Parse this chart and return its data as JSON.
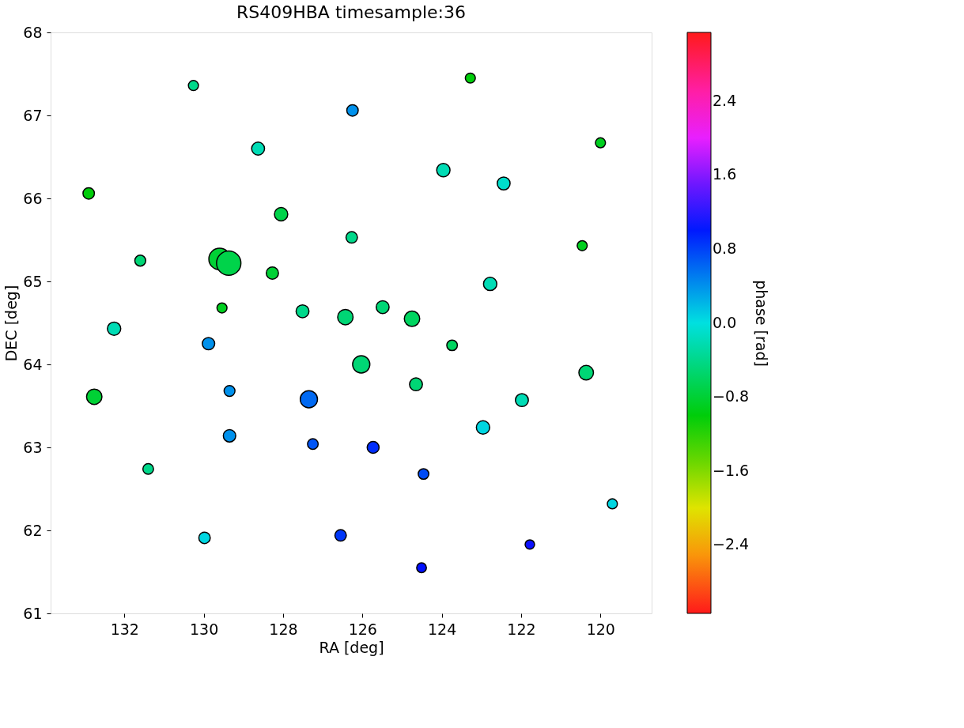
{
  "chart_data": {
    "type": "bubble",
    "title": "RS409HBA  timesample:36",
    "xlabel": "RA  [deg]",
    "ylabel": "DEC  [deg]",
    "clabel": "phase [rad]",
    "x": [
      130.26,
      126.25,
      123.28,
      120.0,
      132.9,
      128.63,
      123.96,
      122.44,
      128.05,
      126.27,
      120.46,
      131.6,
      129.6,
      129.37,
      128.27,
      129.54,
      132.26,
      127.51,
      126.43,
      125.49,
      124.75,
      122.78,
      123.74,
      129.88,
      126.03,
      120.36,
      132.76,
      129.35,
      127.35,
      124.65,
      121.98,
      122.96,
      129.35,
      127.25,
      125.73,
      131.4,
      124.46,
      119.7,
      129.98,
      126.55,
      121.78,
      124.51
    ],
    "series": [
      {
        "values": [
          67.36,
          67.06,
          67.45,
          66.67,
          66.06,
          66.6,
          66.34,
          66.18,
          65.81,
          65.53,
          65.43,
          65.25,
          65.27,
          65.22,
          65.1,
          64.68,
          64.43,
          64.64,
          64.57,
          64.69,
          64.55,
          64.97,
          64.23,
          64.25,
          64.0,
          63.9,
          63.61,
          63.68,
          63.58,
          63.76,
          63.57,
          63.24,
          63.14,
          63.04,
          63.0,
          62.74,
          62.68,
          62.32,
          61.91,
          61.94,
          61.83,
          61.55
        ],
        "sizes": [
          0.17,
          0.22,
          0.17,
          0.17,
          0.22,
          0.28,
          0.3,
          0.28,
          0.3,
          0.22,
          0.17,
          0.2,
          0.78,
          1.0,
          0.25,
          0.17,
          0.3,
          0.28,
          0.4,
          0.28,
          0.4,
          0.3,
          0.19,
          0.26,
          0.5,
          0.36,
          0.4,
          0.2,
          0.5,
          0.28,
          0.28,
          0.3,
          0.26,
          0.19,
          0.24,
          0.19,
          0.19,
          0.17,
          0.22,
          0.22,
          0.15,
          0.16
        ],
        "cvalues": [
          -0.4,
          0.4,
          -1.0,
          -0.9,
          -1.0,
          -0.2,
          -0.2,
          -0.1,
          -0.7,
          -0.4,
          -0.9,
          -0.5,
          -0.8,
          -0.7,
          -0.8,
          -0.9,
          -0.2,
          -0.4,
          -0.5,
          -0.5,
          -0.6,
          -0.2,
          -0.6,
          0.4,
          -0.5,
          -0.5,
          -0.8,
          0.4,
          0.6,
          -0.5,
          -0.2,
          0.05,
          0.4,
          0.7,
          0.9,
          -0.4,
          0.75,
          0.05,
          0.05,
          0.85,
          1.1,
          1.05
        ]
      }
    ],
    "xlim": [
      133.86,
      118.71
    ],
    "xticks": [
      132,
      130,
      128,
      126,
      124,
      122,
      120
    ],
    "ylim": [
      61,
      68
    ],
    "yticks": [
      61,
      62,
      63,
      64,
      65,
      66,
      67,
      68
    ],
    "clim": [
      -3.14,
      3.14
    ],
    "cticks": [
      {
        "value": -2.4,
        "label": "−2.4"
      },
      {
        "value": -1.6,
        "label": "−1.6"
      },
      {
        "value": -0.8,
        "label": "−0.8"
      },
      {
        "value": 0,
        "label": "0.0"
      },
      0.8,
      1.6,
      2.4
    ],
    "marker": "circle",
    "grid": false,
    "legend": false
  }
}
